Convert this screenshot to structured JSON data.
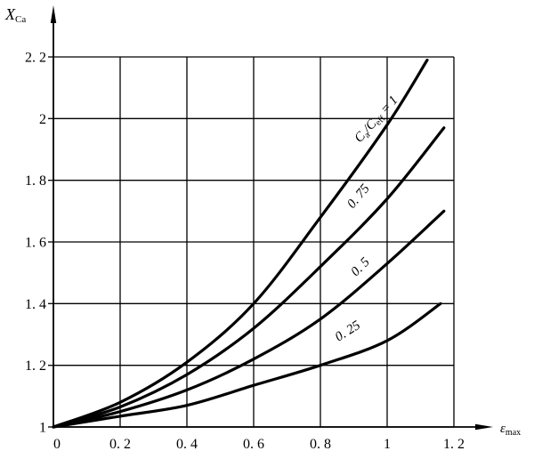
{
  "colors": {
    "ink": "#000000",
    "background": "#ffffff"
  },
  "chart_data": {
    "type": "line",
    "title": "",
    "xlabel": "epsilon_max",
    "ylabel": "X_Ca",
    "xlim": [
      0,
      1.2
    ],
    "ylim": [
      1,
      2.2
    ],
    "grid": true,
    "legend_position": "labels-along-curves",
    "x_axis_title_parts": [
      {
        "t": "ε",
        "italic": true
      },
      {
        "t": "max",
        "sub": true
      }
    ],
    "y_axis_title_parts": [
      {
        "t": "X",
        "italic": true
      },
      {
        "t": "Ca",
        "sub": true
      }
    ],
    "x_ticks": [
      {
        "value": 0,
        "label": "0"
      },
      {
        "value": 0.2,
        "label": "0. 2"
      },
      {
        "value": 0.4,
        "label": "0. 4"
      },
      {
        "value": 0.6,
        "label": "0. 6"
      },
      {
        "value": 0.8,
        "label": "0. 8"
      },
      {
        "value": 1,
        "label": "1"
      },
      {
        "value": 1.2,
        "label": "1. 2"
      }
    ],
    "y_ticks": [
      {
        "value": 1,
        "label": "1"
      },
      {
        "value": 1.2,
        "label": "1. 2"
      },
      {
        "value": 1.4,
        "label": "1. 4"
      },
      {
        "value": 1.6,
        "label": "1. 6"
      },
      {
        "value": 1.8,
        "label": "1. 8"
      },
      {
        "value": 2,
        "label": "2"
      },
      {
        "value": 2.2,
        "label": "2. 2"
      }
    ],
    "series": [
      {
        "name": "Ca/Ceff = 1",
        "slug": "curve-ca-ceff-1",
        "x": [
          0,
          0.2,
          0.4,
          0.6,
          0.8,
          1.0,
          1.12
        ],
        "y": [
          1,
          1.08,
          1.21,
          1.4,
          1.68,
          1.98,
          2.19
        ]
      },
      {
        "name": "Ca/Ceff = 0.75",
        "slug": "curve-ca-ceff-0-75",
        "x": [
          0,
          0.2,
          0.4,
          0.6,
          0.8,
          1.0,
          1.17
        ],
        "y": [
          1,
          1.065,
          1.17,
          1.32,
          1.52,
          1.74,
          1.97
        ]
      },
      {
        "name": "Ca/Ceff = 0.5",
        "slug": "curve-ca-ceff-0-5",
        "x": [
          0,
          0.2,
          0.4,
          0.6,
          0.8,
          1.0,
          1.17
        ],
        "y": [
          1,
          1.05,
          1.12,
          1.22,
          1.35,
          1.53,
          1.7
        ]
      },
      {
        "name": "Ca/Ceff = 0.25",
        "slug": "curve-ca-ceff-0-25",
        "x": [
          0,
          0.2,
          0.4,
          0.6,
          0.8,
          1.0,
          1.16
        ],
        "y": [
          1,
          1.035,
          1.07,
          1.135,
          1.2,
          1.28,
          1.4
        ]
      }
    ],
    "annotations": [
      {
        "id": "curve-label-ca-ceff-1",
        "parts": [
          {
            "t": "C",
            "italic": true
          },
          {
            "t": "a",
            "sub": true
          },
          {
            "t": "/C",
            "italic": true
          },
          {
            "t": "eff",
            "sub": true
          },
          {
            "t": " = 1",
            "italic": true
          }
        ],
        "x": 0.976,
        "y": 1.99,
        "rotate": -48
      },
      {
        "id": "curve-label-0-75",
        "parts": [
          {
            "t": "0. 75",
            "italic": true
          }
        ],
        "x": 0.923,
        "y": 1.74,
        "rotate": -50
      },
      {
        "id": "curve-label-0-5",
        "parts": [
          {
            "t": "0. 5",
            "italic": true
          }
        ],
        "x": 0.928,
        "y": 1.51,
        "rotate": -45
      },
      {
        "id": "curve-label-0-25",
        "parts": [
          {
            "t": "0. 25",
            "italic": true
          }
        ],
        "x": 0.888,
        "y": 1.3,
        "rotate": -32
      }
    ]
  }
}
